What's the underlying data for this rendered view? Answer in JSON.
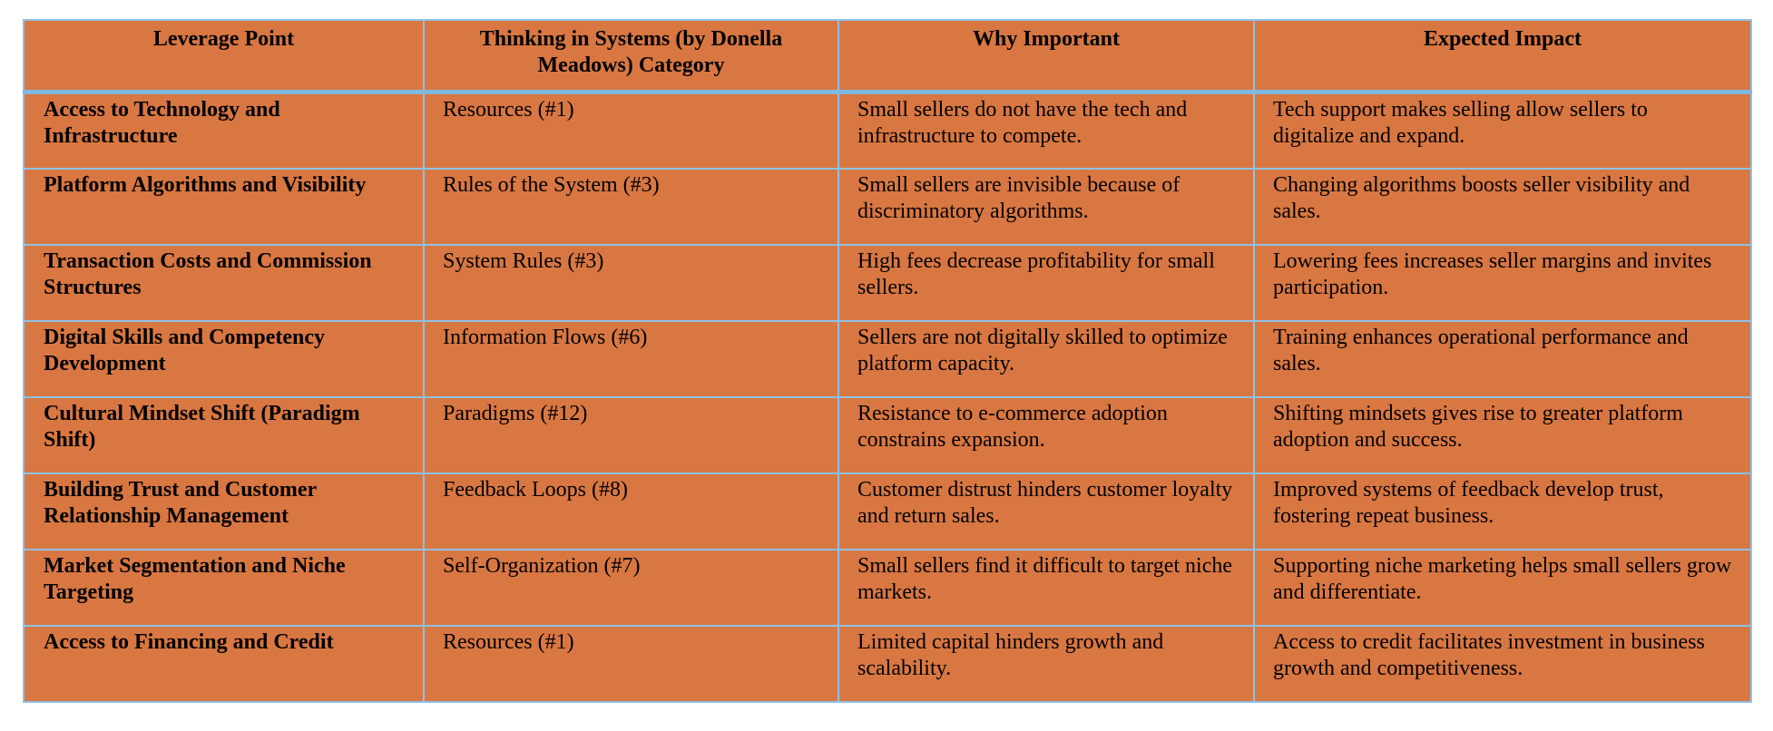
{
  "table": {
    "headers": [
      "Leverage Point",
      "Thinking in Systems (by Donella Meadows) Category",
      "Why Important",
      "Expected Impact"
    ],
    "rows": [
      {
        "leverage_point": "Access to Technology and Infrastructure",
        "category": "Resources (#1)",
        "why_important": "Small sellers do not have the tech and infrastructure to compete.",
        "expected_impact": "Tech support makes selling allow sellers to digitalize and expand."
      },
      {
        "leverage_point": "Platform Algorithms and Visibility",
        "category": "Rules of the System (#3)",
        "why_important": "Small sellers are invisible because of discriminatory algorithms.",
        "expected_impact": "Changing algorithms boosts seller visibility and sales."
      },
      {
        "leverage_point": "Transaction Costs and Commission Structures",
        "category": "System Rules (#3)",
        "why_important": "High fees decrease profitability for small sellers.",
        "expected_impact": "Lowering fees increases seller margins and invites participation."
      },
      {
        "leverage_point": "Digital Skills and Competency Development",
        "category": "Information Flows (#6)",
        "why_important": "Sellers are not digitally skilled to optimize platform capacity.",
        "expected_impact": "Training enhances operational performance and sales."
      },
      {
        "leverage_point": "Cultural Mindset Shift (Paradigm Shift)",
        "category": "Paradigms (#12)",
        "why_important": "Resistance to e-commerce adoption constrains expansion.",
        "expected_impact": "Shifting mindsets gives rise to greater platform adoption and success."
      },
      {
        "leverage_point": "Building Trust and Customer Relationship Management",
        "category": "Feedback Loops (#8)",
        "why_important": "Customer distrust hinders customer loyalty and return sales.",
        "expected_impact": "Improved systems of feedback develop trust, fostering repeat business."
      },
      {
        "leverage_point": "Market Segmentation and Niche Targeting",
        "category": "Self-Organization (#7)",
        "why_important": "Small sellers find it difficult to target niche markets.",
        "expected_impact": "Supporting niche marketing helps small sellers grow and differentiate."
      },
      {
        "leverage_point": "Access to Financing and Credit",
        "category": "Resources (#1)",
        "why_important": "Limited capital hinders growth and scalability.",
        "expected_impact": "Access to credit facilitates investment in business growth and competitiveness."
      }
    ]
  },
  "colors": {
    "cell_background": "#d97742",
    "border": "#8ec2e6",
    "header_divider": "#7fb8e0"
  }
}
